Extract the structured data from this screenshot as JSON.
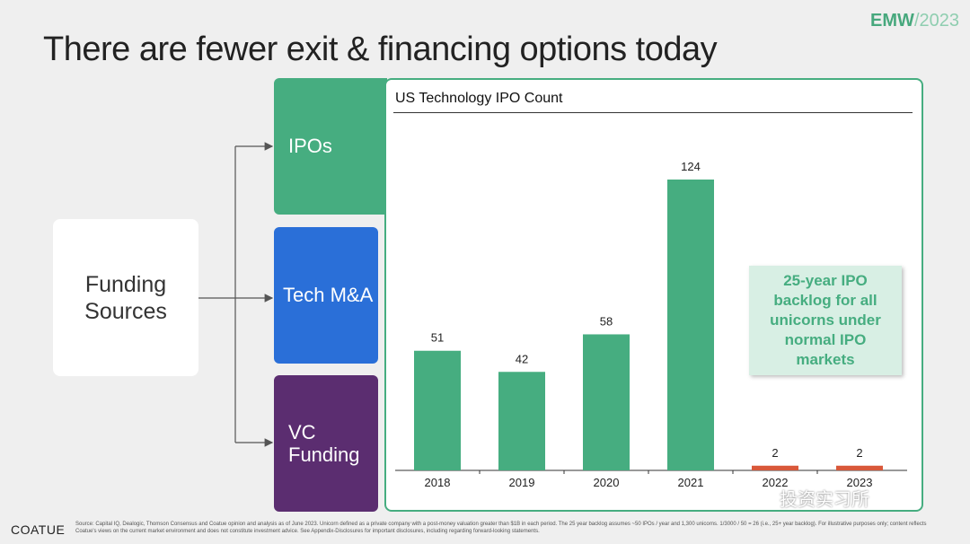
{
  "header": {
    "brand_bold": "EMW",
    "brand_year": "/2023",
    "title": "There are fewer exit & financing options today"
  },
  "flow": {
    "source": {
      "line1": "Funding",
      "line2": "Sources"
    },
    "targets": [
      {
        "label": "IPOs"
      },
      {
        "label": "Tech M&A"
      },
      {
        "label1": "VC",
        "label2": "Funding"
      }
    ]
  },
  "colors": {
    "green": "#46ad80",
    "blue": "#2a6fd8",
    "purple": "#5b2d70",
    "orange": "#d9583a"
  },
  "chart_data": {
    "type": "bar",
    "title": "US Technology IPO Count",
    "categories": [
      "2018",
      "2019",
      "2020",
      "2021",
      "2022",
      "2023"
    ],
    "values": [
      51,
      42,
      58,
      124,
      2,
      2
    ],
    "highlight_from_index": 4,
    "xlabel": "",
    "ylabel": "",
    "ylim": [
      0,
      124
    ],
    "grid": false
  },
  "callout": {
    "text1": "25-year IPO",
    "text2": "backlog for all",
    "text3": "unicorns under",
    "text4": "normal IPO",
    "text5": "markets"
  },
  "footer": {
    "logo": "COATUE",
    "note": "Source: Capital IQ, Dealogic, Thomson Consensus and Coatue opinion and analysis as of June 2023. Unicorn defined as a private company with a post-money valuation greater than $1B in each period. The 25 year backlog assumes ~50 IPOs / year and 1,300 unicorns. 1/3000 / 50 = 26 (i.e., 25+ year backlog). For illustrative purposes only; content reflects Coatue's views on the current market environment and does not constitute investment advice. See Appendix-Disclosures for important disclosures, including regarding forward-looking statements.",
    "watermark": "投资实习所"
  }
}
